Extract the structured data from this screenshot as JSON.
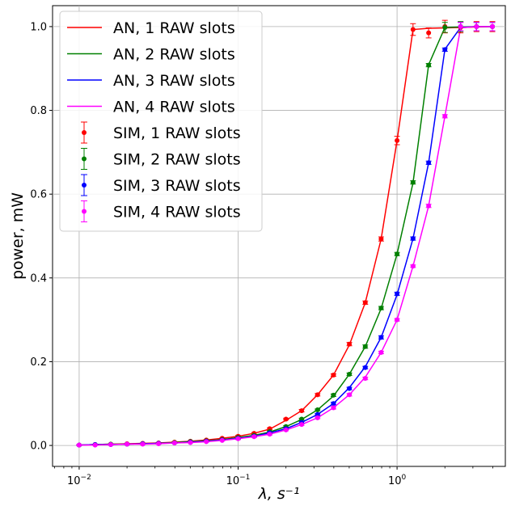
{
  "chart_data": {
    "type": "line",
    "xlabel": "λ, s⁻¹",
    "ylabel": "power, mW",
    "x_scale": "log",
    "xlim": [
      0.0068,
      4.8
    ],
    "ylim": [
      -0.05,
      1.05
    ],
    "x_ticks": [
      {
        "value": 0.01,
        "base": "10",
        "exp": "−2"
      },
      {
        "value": 0.1,
        "base": "10",
        "exp": "−1"
      },
      {
        "value": 1,
        "base": "10",
        "exp": "0"
      }
    ],
    "y_ticks": [
      {
        "value": 0.0,
        "label": "0.0"
      },
      {
        "value": 0.2,
        "label": "0.2"
      },
      {
        "value": 0.4,
        "label": "0.4"
      },
      {
        "value": 0.6,
        "label": "0.6"
      },
      {
        "value": 0.8,
        "label": "0.8"
      },
      {
        "value": 1.0,
        "label": "1.0"
      }
    ],
    "grid": true,
    "legend_position": "upper-left",
    "x": [
      0.01,
      0.0126,
      0.0158,
      0.02,
      0.0251,
      0.0316,
      0.0398,
      0.0501,
      0.0631,
      0.0794,
      0.1,
      0.126,
      0.158,
      0.2,
      0.251,
      0.316,
      0.398,
      0.501,
      0.631,
      0.794,
      1.0,
      1.26,
      1.58,
      2.0,
      2.51,
      3.16,
      3.98
    ],
    "series": [
      {
        "name": "AN, 1 RAW slots",
        "kind": "line",
        "color": "#ff0000",
        "values": [
          0.001,
          0.002,
          0.003,
          0.004,
          0.005,
          0.006,
          0.008,
          0.01,
          0.013,
          0.017,
          0.022,
          0.029,
          0.039,
          0.06,
          0.083,
          0.121,
          0.168,
          0.24,
          0.341,
          0.493,
          0.728,
          0.993,
          0.996,
          0.997,
          0.998,
          0.999,
          1.0
        ]
      },
      {
        "name": "AN, 2 RAW slots",
        "kind": "line",
        "color": "#008000",
        "values": [
          0.001,
          0.002,
          0.003,
          0.003,
          0.004,
          0.005,
          0.007,
          0.009,
          0.011,
          0.014,
          0.019,
          0.024,
          0.032,
          0.045,
          0.062,
          0.085,
          0.118,
          0.17,
          0.236,
          0.327,
          0.457,
          0.627,
          0.909,
          0.998,
          0.999,
          1.0,
          1.0
        ]
      },
      {
        "name": "AN, 3 RAW slots",
        "kind": "line",
        "color": "#0000ff",
        "values": [
          0.001,
          0.002,
          0.002,
          0.003,
          0.004,
          0.005,
          0.006,
          0.008,
          0.01,
          0.013,
          0.017,
          0.022,
          0.03,
          0.04,
          0.055,
          0.074,
          0.1,
          0.138,
          0.188,
          0.258,
          0.36,
          0.494,
          0.675,
          0.946,
          0.998,
          1.0,
          1.0
        ]
      },
      {
        "name": "AN, 4 RAW slots",
        "kind": "line",
        "color": "#ff00ff",
        "values": [
          0.001,
          0.001,
          0.002,
          0.003,
          0.003,
          0.004,
          0.006,
          0.007,
          0.009,
          0.012,
          0.016,
          0.021,
          0.027,
          0.037,
          0.05,
          0.066,
          0.09,
          0.121,
          0.163,
          0.222,
          0.3,
          0.428,
          0.572,
          0.786,
          0.997,
          1.0,
          1.0
        ]
      },
      {
        "name": "SIM, 1 RAW slots",
        "kind": "errorbar",
        "color": "#ff0000",
        "values": [
          0.001,
          0.002,
          0.003,
          0.004,
          0.005,
          0.006,
          0.008,
          0.01,
          0.013,
          0.017,
          0.022,
          0.029,
          0.04,
          0.063,
          0.083,
          0.121,
          0.168,
          0.242,
          0.341,
          0.493,
          0.728,
          0.993,
          0.985,
          1.0,
          0.998,
          1.0,
          1.0
        ],
        "errors": [
          0.001,
          0.001,
          0.001,
          0.001,
          0.001,
          0.001,
          0.001,
          0.001,
          0.001,
          0.001,
          0.002,
          0.002,
          0.002,
          0.002,
          0.003,
          0.003,
          0.003,
          0.004,
          0.004,
          0.005,
          0.01,
          0.014,
          0.012,
          0.015,
          0.013,
          0.012,
          0.012
        ]
      },
      {
        "name": "SIM, 2 RAW slots",
        "kind": "errorbar",
        "color": "#008000",
        "values": [
          0.001,
          0.002,
          0.003,
          0.003,
          0.004,
          0.005,
          0.007,
          0.009,
          0.011,
          0.014,
          0.019,
          0.024,
          0.033,
          0.045,
          0.063,
          0.085,
          0.12,
          0.17,
          0.236,
          0.328,
          0.457,
          0.628,
          0.908,
          0.998,
          1.0,
          1.0,
          1.0
        ],
        "errors": [
          0.001,
          0.001,
          0.001,
          0.001,
          0.001,
          0.001,
          0.001,
          0.001,
          0.001,
          0.001,
          0.002,
          0.002,
          0.002,
          0.002,
          0.002,
          0.002,
          0.003,
          0.003,
          0.004,
          0.004,
          0.004,
          0.004,
          0.004,
          0.012,
          0.012,
          0.01,
          0.01
        ]
      },
      {
        "name": "SIM, 3 RAW slots",
        "kind": "errorbar",
        "color": "#0000ff",
        "values": [
          0.001,
          0.002,
          0.002,
          0.003,
          0.004,
          0.005,
          0.006,
          0.008,
          0.01,
          0.013,
          0.017,
          0.022,
          0.03,
          0.04,
          0.055,
          0.074,
          0.1,
          0.136,
          0.186,
          0.258,
          0.362,
          0.494,
          0.675,
          0.945,
          1.0,
          1.0,
          1.0
        ],
        "errors": [
          0.001,
          0.001,
          0.001,
          0.001,
          0.001,
          0.001,
          0.001,
          0.001,
          0.001,
          0.001,
          0.002,
          0.002,
          0.002,
          0.002,
          0.002,
          0.002,
          0.003,
          0.003,
          0.003,
          0.004,
          0.004,
          0.004,
          0.004,
          0.004,
          0.01,
          0.01,
          0.01
        ]
      },
      {
        "name": "SIM, 4 RAW slots",
        "kind": "errorbar",
        "color": "#ff00ff",
        "values": [
          0.001,
          0.001,
          0.002,
          0.003,
          0.003,
          0.004,
          0.006,
          0.007,
          0.009,
          0.012,
          0.016,
          0.021,
          0.027,
          0.037,
          0.05,
          0.066,
          0.09,
          0.121,
          0.16,
          0.222,
          0.3,
          0.428,
          0.572,
          0.786,
          1.0,
          1.0,
          1.0
        ],
        "errors": [
          0.001,
          0.001,
          0.001,
          0.001,
          0.001,
          0.001,
          0.001,
          0.001,
          0.001,
          0.001,
          0.002,
          0.002,
          0.002,
          0.002,
          0.002,
          0.002,
          0.003,
          0.003,
          0.003,
          0.003,
          0.003,
          0.003,
          0.004,
          0.004,
          0.01,
          0.01,
          0.01
        ]
      }
    ]
  }
}
